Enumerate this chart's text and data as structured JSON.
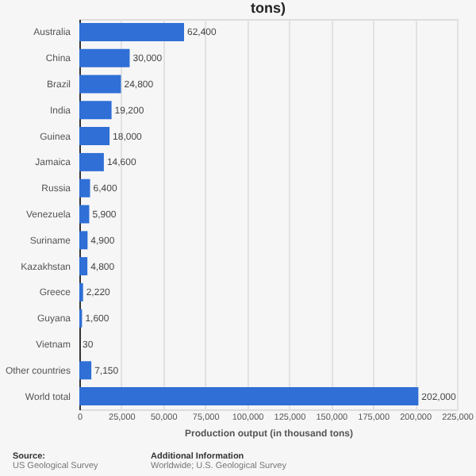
{
  "chart_data": {
    "type": "bar",
    "orientation": "horizontal",
    "title": "tons)",
    "categories": [
      "Australia",
      "China",
      "Brazil",
      "India",
      "Guinea",
      "Jamaica",
      "Russia",
      "Venezuela",
      "Suriname",
      "Kazakhstan",
      "Greece",
      "Guyana",
      "Vietnam",
      "Other countries",
      "World total"
    ],
    "values": [
      62400,
      30000,
      24800,
      19200,
      18000,
      14600,
      6400,
      5900,
      4900,
      4800,
      2220,
      1600,
      30,
      7150,
      202000
    ],
    "value_labels": [
      "62,400",
      "30,000",
      "24,800",
      "19,200",
      "18,000",
      "14,600",
      "6,400",
      "5,900",
      "4,900",
      "4,800",
      "2,220",
      "1,600",
      "30",
      "7,150",
      "202,000"
    ],
    "color": "#2f6fd6",
    "xlabel": "Production output (in thousand tons)",
    "xlim": [
      0,
      225000
    ],
    "xticks": [
      0,
      {
        "value": 25000,
        "label": "25,000"
      },
      {
        "value": 50000,
        "label": "50,000"
      },
      {
        "value": 75000,
        "label": "75,000"
      },
      {
        "value": 100000,
        "label": "100,000"
      },
      {
        "value": 125000,
        "label": "125,000"
      },
      {
        "value": 150000,
        "label": "150,000"
      },
      {
        "value": 175000,
        "label": "175,000"
      },
      {
        "value": 200000,
        "label": "200,000"
      },
      {
        "value": 225000,
        "label": "225,000"
      }
    ],
    "grid": "x",
    "annotations": [
      "Source:",
      "US Geological Survey",
      "Additional Information",
      "Worldwide; U.S. Geological Survey"
    ]
  }
}
